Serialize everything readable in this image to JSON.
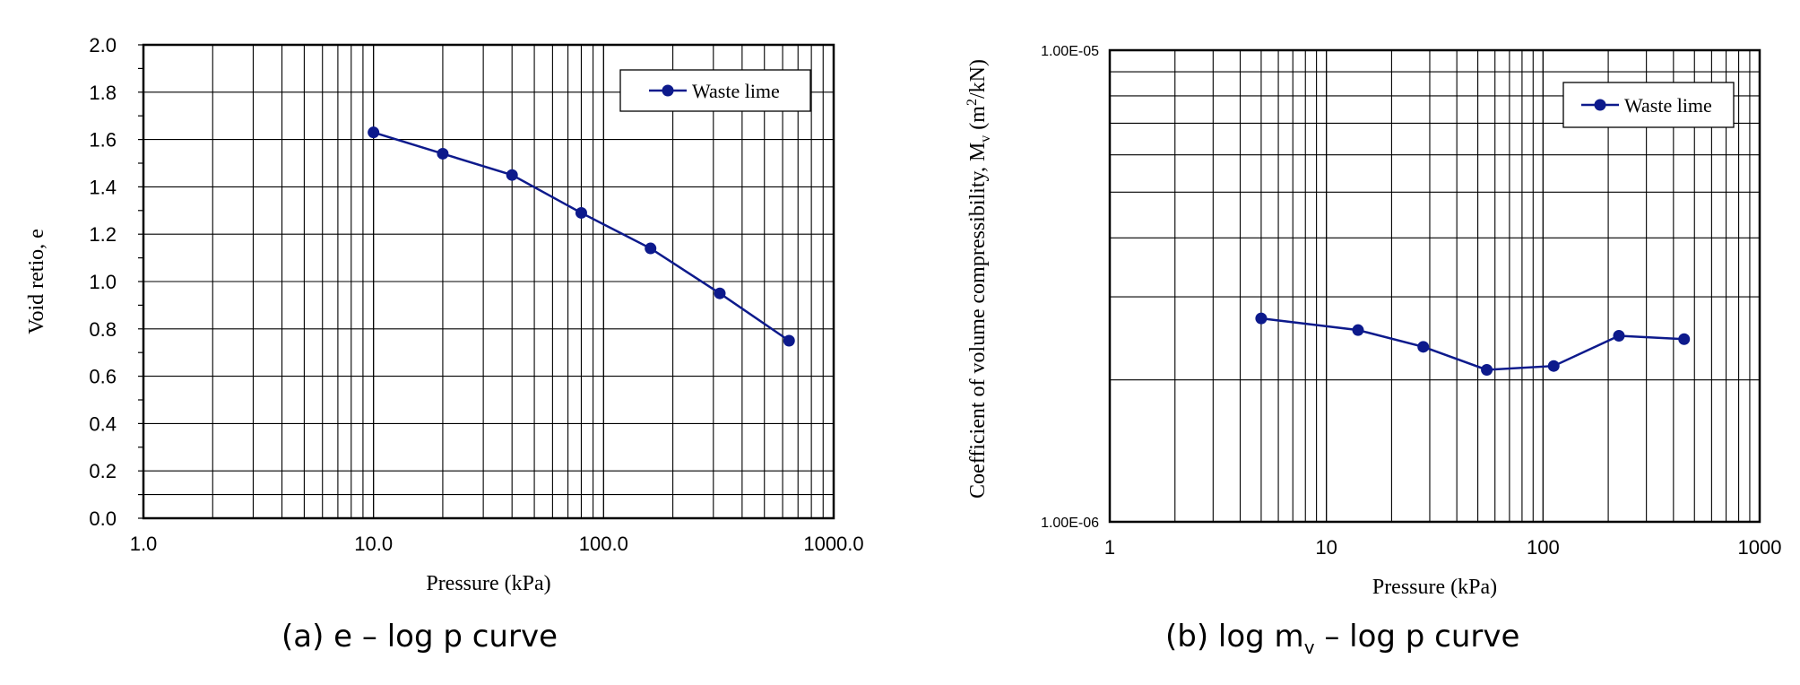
{
  "chart_data": [
    {
      "type": "line",
      "caption": "(a) e – log p curve",
      "xlabel": "Pressure (kPa)",
      "ylabel": "Void retio, e",
      "x_scale": "log",
      "xlim": [
        1.0,
        1000.0
      ],
      "ylim": [
        0.0,
        2.0
      ],
      "x_ticks": [
        "1.0",
        "10.0",
        "100.0",
        "1000.0"
      ],
      "y_ticks": [
        "0.0",
        "0.2",
        "0.4",
        "0.6",
        "0.8",
        "1.0",
        "1.2",
        "1.4",
        "1.6",
        "1.8",
        "2.0"
      ],
      "grid": true,
      "legend": "top-right",
      "series": [
        {
          "name": "Waste lime",
          "color": "#0d1a8c",
          "x": [
            10,
            20,
            40,
            80,
            160,
            320,
            640
          ],
          "y": [
            1.63,
            1.54,
            1.45,
            1.29,
            1.14,
            0.95,
            0.75
          ]
        }
      ]
    },
    {
      "type": "line",
      "caption_main": "(b) log m",
      "caption_sub": "v",
      "caption_rest": " – log p curve",
      "xlabel": "Pressure (kPa)",
      "ylabel_main": "Coefficient of volume compressibility, M",
      "ylabel_sub": "v",
      "ylabel_mid": " (m",
      "ylabel_sup": "2",
      "ylabel_end": "/kN)",
      "x_scale": "log",
      "y_scale": "log",
      "xlim": [
        1,
        1000
      ],
      "ylim": [
        1e-06,
        1e-05
      ],
      "x_ticks": [
        "1",
        "10",
        "100",
        "1000"
      ],
      "y_ticks": [
        "1.00E-06",
        "1.00E-05"
      ],
      "grid": true,
      "legend": "top-right",
      "series": [
        {
          "name": "Waste lime",
          "color": "#0d1a8c",
          "x": [
            5,
            14,
            28,
            55,
            112,
            224,
            448
          ],
          "y": [
            2.7e-06,
            2.55e-06,
            2.35e-06,
            2.1e-06,
            2.14e-06,
            2.48e-06,
            2.44e-06
          ]
        }
      ]
    }
  ]
}
